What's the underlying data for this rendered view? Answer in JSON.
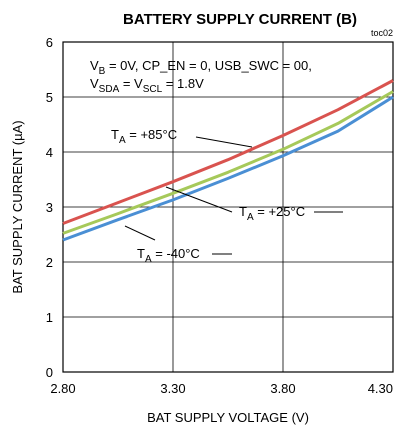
{
  "chart_data": {
    "type": "line",
    "title": "BATTERY SUPPLY CURRENT (B)",
    "figure_id": "toc02",
    "xlabel": "BAT SUPPLY VOLTAGE (V)",
    "ylabel": "BAT SUPPLY CURRENT  (µA)",
    "xlim": [
      2.8,
      4.3
    ],
    "ylim": [
      0,
      6
    ],
    "xticks": [
      "2.80",
      "3.30",
      "3.80",
      "4.30"
    ],
    "yticks": [
      "0",
      "1",
      "2",
      "3",
      "4",
      "5",
      "6"
    ],
    "grid": true,
    "conditions": {
      "line1": {
        "vb": "V",
        "vb_sub": "B",
        "vb_rest": " = 0V, CP_EN = 0, USB_SWC = 00,"
      },
      "line2": {
        "vsda": "V",
        "vsda_sub": "SDA",
        "mid": " = V",
        "vscl_sub": "SCL",
        "rest": " = 1.8V"
      }
    },
    "series": [
      {
        "name": "T_A = +85°C",
        "label_main": "T",
        "label_sub": "A",
        "label_rest": " = +85°C",
        "color": "#d9534f",
        "x": [
          2.8,
          3.05,
          3.3,
          3.55,
          3.8,
          4.05,
          4.3
        ],
        "y": [
          2.7,
          3.08,
          3.46,
          3.86,
          4.3,
          4.77,
          5.3
        ]
      },
      {
        "name": "T_A = +25°C",
        "label_main": "T",
        "label_sub": "A",
        "label_rest": " = +25°C",
        "color": "#a6c95a",
        "x": [
          2.8,
          3.05,
          3.3,
          3.55,
          3.8,
          4.05,
          4.3
        ],
        "y": [
          2.52,
          2.88,
          3.25,
          3.63,
          4.05,
          4.52,
          5.1
        ]
      },
      {
        "name": "T_A = -40°C",
        "label_main": "T",
        "label_sub": "A",
        "label_rest": " = -40°C",
        "color": "#4a8fd4",
        "x": [
          2.8,
          3.05,
          3.3,
          3.55,
          3.8,
          4.05,
          4.3
        ],
        "y": [
          2.4,
          2.77,
          3.13,
          3.52,
          3.93,
          4.38,
          5.0
        ]
      }
    ]
  }
}
